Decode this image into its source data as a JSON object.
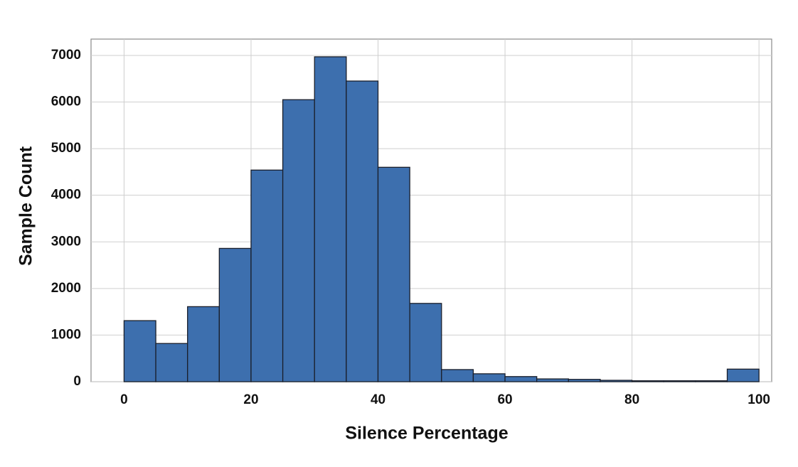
{
  "chart_data": {
    "type": "histogram",
    "x_label": "Silence Percentage",
    "y_label": "Sample Count",
    "bins": [
      0,
      5,
      10,
      15,
      20,
      25,
      30,
      35,
      40,
      45,
      50,
      55,
      60,
      65,
      70,
      75,
      80,
      85,
      90,
      95,
      100
    ],
    "counts": [
      1310,
      820,
      1610,
      2860,
      4540,
      6050,
      6970,
      6450,
      4600,
      1680,
      260,
      170,
      110,
      60,
      50,
      30,
      20,
      20,
      20,
      270
    ],
    "color": "#3d6fae",
    "edgecolor": "#1a1f2b",
    "xlim": [
      -5.2,
      102
    ],
    "ylim": [
      0,
      7350
    ],
    "xticks": [
      0,
      20,
      40,
      60,
      80,
      100
    ],
    "yticks": [
      0,
      1000,
      2000,
      3000,
      4000,
      5000,
      6000,
      7000
    ],
    "grid": true
  }
}
